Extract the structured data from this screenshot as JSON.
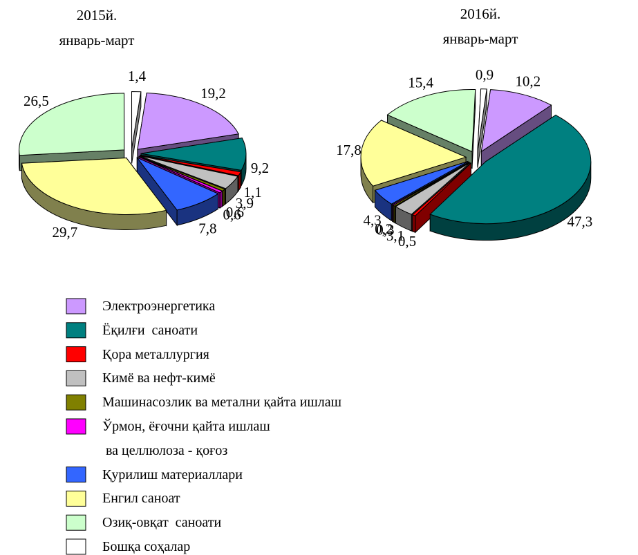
{
  "chart_data": [
    {
      "type": "pie",
      "title": "2015й.\nянварь-март",
      "categories": [
        "Электроэнергетика",
        "Ёқилғи  саноати",
        "Қора металлургия",
        "Кимё ва нефт-кимё",
        "Машинасозлик ва метални қайта ишлаш",
        "Ўрмон, ёғочни қайта ишлаш\n ва целлюлоза - қоғоз",
        "Қурилиш материаллари",
        "Енгил саноат",
        "Озиқ-овқат  саноати",
        "Бошқа соҳалар"
      ],
      "values": [
        19.2,
        9.2,
        1.1,
        3.9,
        0.6,
        0.6,
        7.8,
        29.7,
        26.5,
        1.4
      ],
      "value_labels": [
        "19,2",
        "9,2",
        "1,1",
        "3,9",
        "0,6",
        "0,6",
        "7,8",
        "29,7",
        "26,5",
        "1,4"
      ],
      "colors": [
        "#cc99ff",
        "#008080",
        "#ff0000",
        "#c0c0c0",
        "#808000",
        "#ff00ff",
        "#3366ff",
        "#ffff99",
        "#ccffcc",
        "#ffffff"
      ]
    },
    {
      "type": "pie",
      "title": "2016й.\nянварь-март",
      "categories": [
        "Электроэнергетика",
        "Ёқилғи  саноати",
        "Қора металлургия",
        "Кимё ва нефт-кимё",
        "Машинасозлик ва метални қайта ишлаш",
        "Ўрмон, ёғочни қайта ишлаш\n ва целлюлоза - қоғоз",
        "Қурилиш материаллари",
        "Енгил саноат",
        "Озиқ-овқат  саноати",
        "Бошқа соҳалар"
      ],
      "values": [
        10.2,
        47.3,
        0.5,
        3.1,
        0.3,
        0.2,
        4.3,
        17.8,
        15.4,
        0.9
      ],
      "value_labels": [
        "10,2",
        "47,3",
        "0,5",
        "3,1",
        "0,3",
        "0,2",
        "4,3",
        "17,8",
        "15,4",
        "0,9"
      ],
      "colors": [
        "#cc99ff",
        "#008080",
        "#ff0000",
        "#c0c0c0",
        "#808000",
        "#ff00ff",
        "#3366ff",
        "#ffff99",
        "#ccffcc",
        "#ffffff"
      ]
    }
  ]
}
